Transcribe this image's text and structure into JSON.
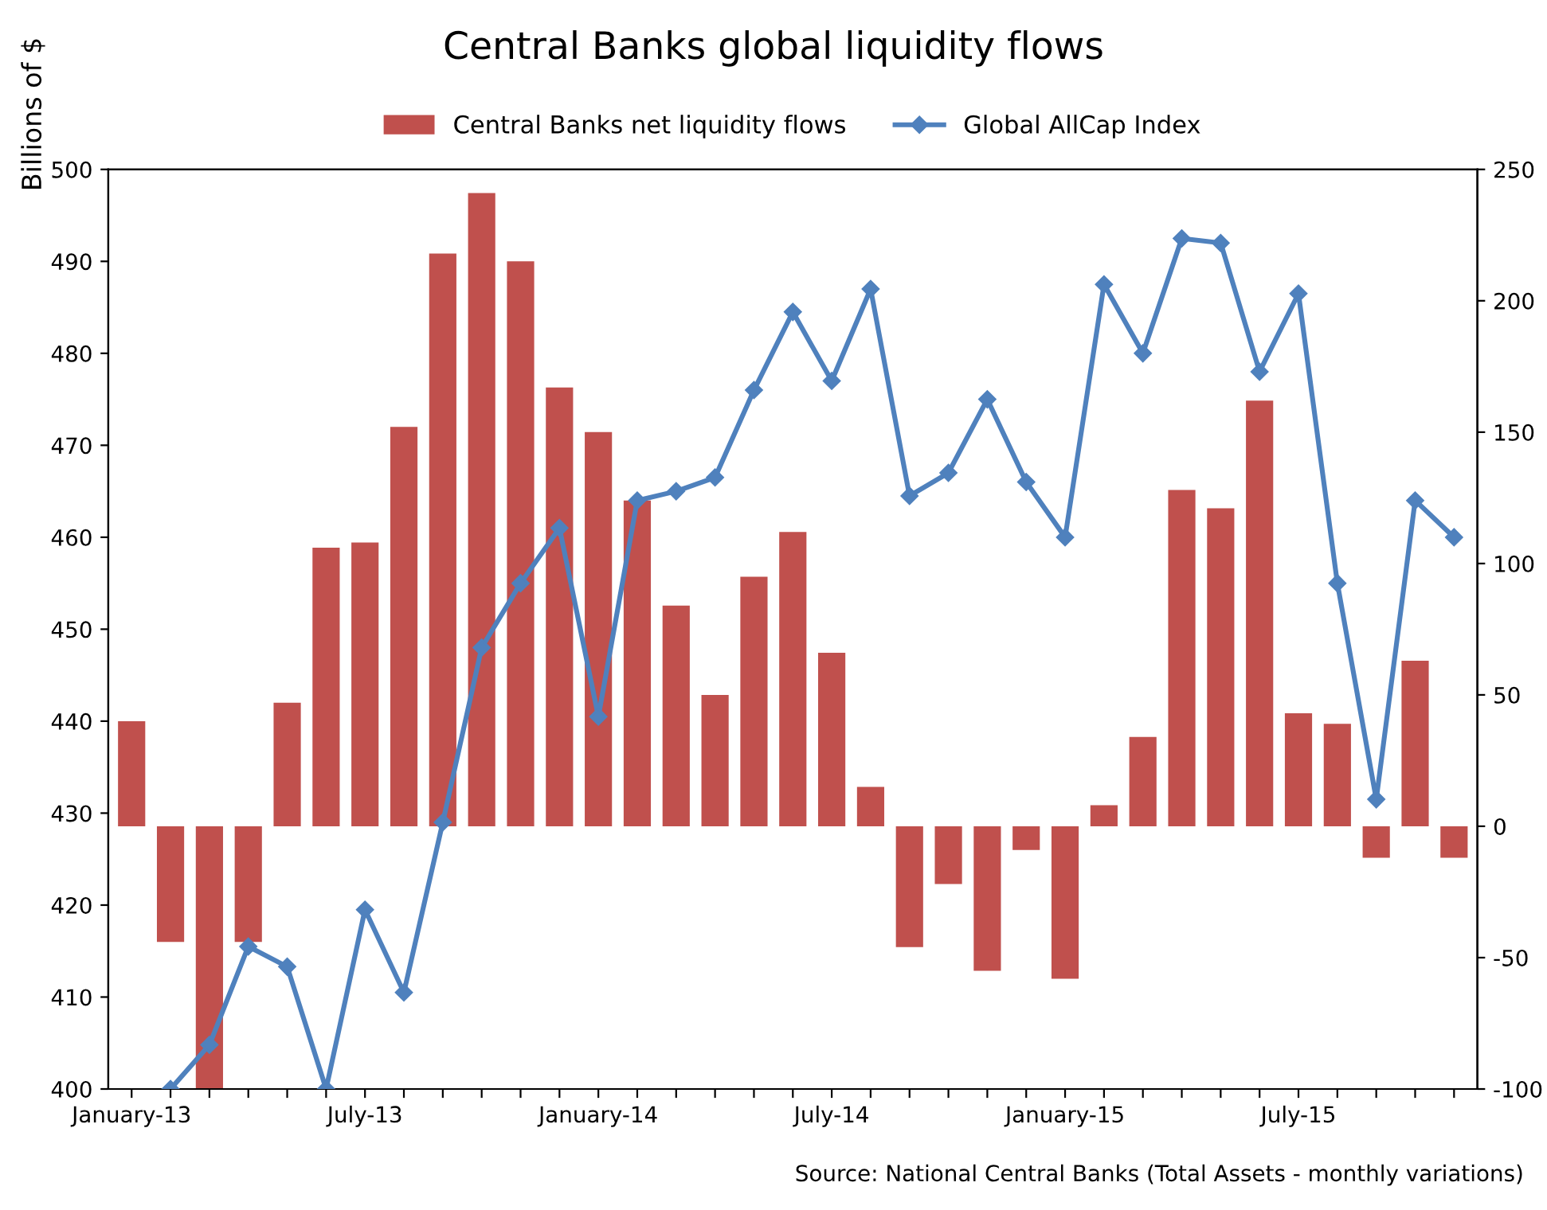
{
  "chart_data": {
    "type": "bar",
    "title": "Central Banks global liquidity flows",
    "ylabel": "Billions of $",
    "categories": [
      "January-13",
      null,
      null,
      null,
      null,
      null,
      "July-13",
      null,
      null,
      null,
      null,
      null,
      "January-14",
      null,
      null,
      null,
      null,
      null,
      "July-14",
      null,
      null,
      null,
      null,
      null,
      "January-15",
      null,
      null,
      null,
      null,
      null,
      "July-15",
      null,
      null,
      null,
      null
    ],
    "series": [
      {
        "name": "Central Banks net liquidity flows",
        "axis": "y2",
        "color": "#c0504d",
        "values": [
          40,
          -44,
          -100,
          -44,
          47,
          106,
          108,
          152,
          218,
          241,
          215,
          167,
          150,
          124,
          84,
          50,
          95,
          112,
          66,
          15,
          -46,
          -22,
          -55,
          -9,
          -58,
          8,
          34,
          128,
          121,
          162,
          43,
          39,
          -12,
          63,
          -12
        ]
      },
      {
        "name": "Global AllCap Index",
        "type": "line",
        "axis": "y",
        "color": "#4f81bd",
        "values": [
          null,
          400,
          404.8,
          415.5,
          413.3,
          400,
          419.5,
          410.5,
          429,
          448,
          455,
          461,
          440.5,
          464,
          465,
          466.5,
          476,
          484.5,
          477,
          487,
          464.5,
          467,
          475,
          466,
          460,
          487.5,
          480,
          492.5,
          492,
          478,
          486.5,
          455,
          431.5,
          464,
          460
        ]
      }
    ],
    "ylim": [
      400,
      500
    ],
    "yticks": [
      400,
      410,
      420,
      430,
      440,
      450,
      460,
      470,
      480,
      490,
      500
    ],
    "y2lim": [
      -100,
      250
    ],
    "y2ticks": [
      -100,
      -50,
      0,
      50,
      100,
      150,
      200,
      250
    ],
    "legend": "top",
    "grid": false,
    "marker": "diamond",
    "annotations": [
      "Source: National Central Banks (Total Assets - monthly variations)"
    ]
  }
}
